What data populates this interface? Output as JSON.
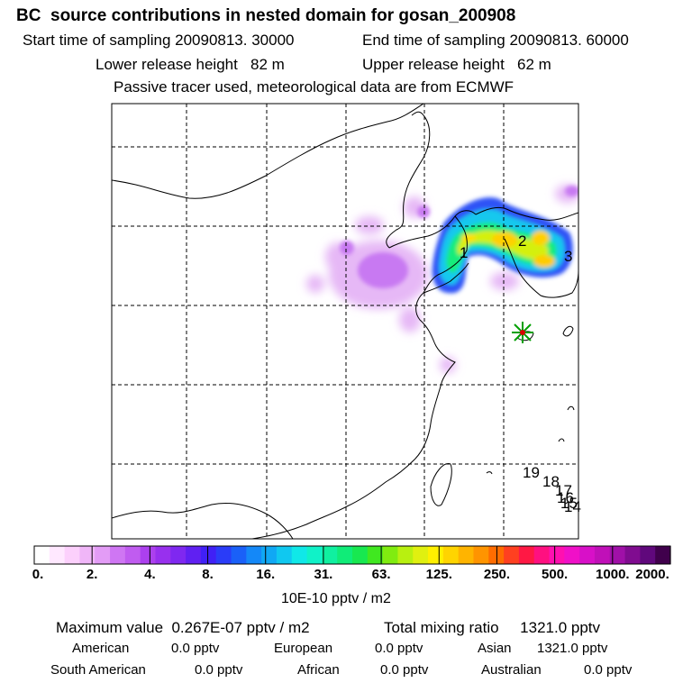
{
  "title": "BC  source contributions in nested domain for gosan_200908",
  "header": {
    "start": "Start time of sampling 20090813. 30000",
    "end": "End time of sampling 20090813. 60000",
    "lower": "Lower release height   82 m",
    "upper": "Upper release height   62 m",
    "note": "Passive tracer used, meteorological data are from ECMWF"
  },
  "map": {
    "trajectory_labels": [
      "1",
      "2",
      "3",
      "19",
      "18",
      "17",
      "16",
      "15",
      "14"
    ],
    "station_marker": "gosan-station-star"
  },
  "colorbar": {
    "ticks": [
      "0.",
      "2.",
      "4.",
      "8.",
      "16.",
      "31.",
      "63.",
      "125.",
      "250.",
      "500.",
      "1000.",
      "2000."
    ],
    "unit": "10E-10 pptv / m2",
    "colors": [
      "#ffffff",
      "#ffe8ff",
      "#fcd0fc",
      "#f0b6f8",
      "#e39cf6",
      "#cf76f3",
      "#c05cf0",
      "#ac40ee",
      "#9830ee",
      "#7f28f0",
      "#6020f2",
      "#4020f6",
      "#2a3cf8",
      "#1a60f8",
      "#1488f8",
      "#10a8f4",
      "#10c8f0",
      "#10e8e8",
      "#10f2c8",
      "#10f0a0",
      "#10ec78",
      "#18e850",
      "#40e820",
      "#80ec10",
      "#b8f010",
      "#e0f010",
      "#fff000",
      "#ffd400",
      "#ffb400",
      "#ff9400",
      "#ff6c00",
      "#ff4020",
      "#ff1844",
      "#ff1080",
      "#ff10b0",
      "#f010c8",
      "#d810c8",
      "#c010b8",
      "#a010a8",
      "#800c90",
      "#60087c",
      "#40004c"
    ]
  },
  "summary": {
    "max_label": "Maximum value  0.267E-07 pptv / m2",
    "total_label": "Total mixing ratio     1321.0 pptv",
    "regions": [
      {
        "name": "American",
        "value": "0.0 pptv"
      },
      {
        "name": "European",
        "value": "0.0 pptv"
      },
      {
        "name": "Asian",
        "value": "1321.0 pptv"
      },
      {
        "name": "South American",
        "value": "0.0 pptv"
      },
      {
        "name": "African",
        "value": "0.0 pptv"
      },
      {
        "name": "Australian",
        "value": "0.0 pptv"
      }
    ]
  }
}
